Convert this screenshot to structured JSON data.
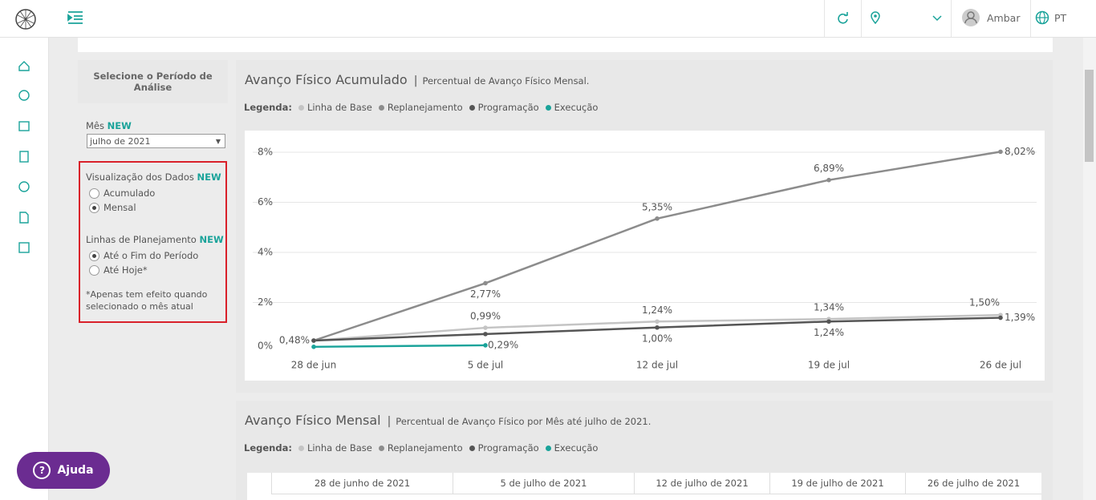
{
  "header": {
    "user": "Ambar",
    "language": "PT"
  },
  "filter": {
    "title": "Selecione o Período de Análise",
    "month_label": "Mês",
    "new_badge": "NEW",
    "month_value": "julho de 2021",
    "view_label": "Visualização dos Dados",
    "view_options": [
      "Acumulado",
      "Mensal"
    ],
    "view_selected": 1,
    "planning_label": "Linhas de Planejamento",
    "planning_options": [
      "Até o Fim do Período",
      "Até Hoje*"
    ],
    "planning_selected": 0,
    "note": "*Apenas tem efeito quando selecionado o mês atual"
  },
  "help_button": "Ajuda",
  "chart_data": {
    "type": "line",
    "title": "Avanço Físico Acumulado",
    "subtitle": "Percentual de Avanço Físico Mensal.",
    "legend_label": "Legenda:",
    "categories": [
      "28 de jun",
      "5 de jul",
      "12 de jul",
      "19 de jul",
      "26 de jul"
    ],
    "ylim": [
      0,
      8
    ],
    "yticks": [
      {
        "value": 0,
        "label": "0%"
      },
      {
        "value": 2,
        "label": "2%"
      },
      {
        "value": 4,
        "label": "4%"
      },
      {
        "value": 6,
        "label": "6%"
      },
      {
        "value": 8,
        "label": "8%"
      }
    ],
    "grid": true,
    "series": [
      {
        "name": "Linha de Base",
        "color": "#c4c4c4",
        "values": [
          0.48,
          0.99,
          1.24,
          1.34,
          1.5
        ],
        "value_labels": [
          "0,48%",
          "0,99%",
          "1,24%",
          "1,34%",
          "1,50%"
        ]
      },
      {
        "name": "Replanejamento",
        "color": "#8c8c8c",
        "values": [
          0.48,
          2.77,
          5.35,
          6.89,
          8.02
        ],
        "value_labels": [
          null,
          "2,77%",
          "5,35%",
          "6,89%",
          "8,02%"
        ]
      },
      {
        "name": "Programação",
        "color": "#555555",
        "values": [
          0.48,
          0.74,
          1.0,
          1.24,
          1.39
        ],
        "value_labels": [
          null,
          null,
          "1,00%",
          "1,24%",
          "1,39%"
        ]
      },
      {
        "name": "Execução",
        "color": "#1aa39a",
        "values": [
          0.23,
          0.29,
          null,
          null,
          null
        ],
        "value_labels": [
          null,
          "0,29%",
          null,
          null,
          null
        ]
      }
    ]
  },
  "monthly": {
    "title": "Avanço Físico Mensal",
    "subtitle": "Percentual de Avanço Físico por Mês até julho de 2021.",
    "legend_label": "Legenda:",
    "columns": [
      "28 de junho de 2021",
      "5 de julho de 2021",
      "12 de julho de 2021",
      "19 de julho de 2021",
      "26 de julho de 2021"
    ]
  }
}
